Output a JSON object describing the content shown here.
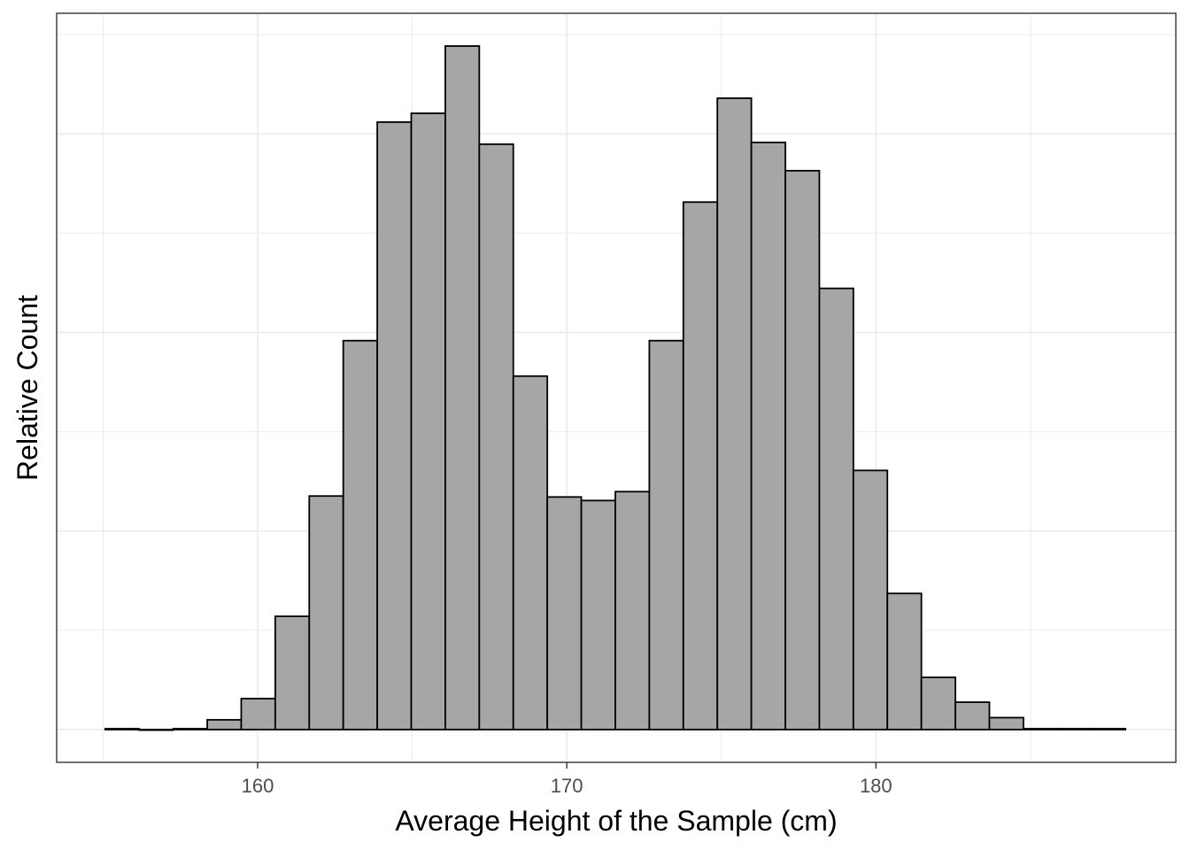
{
  "chart_data": {
    "type": "bar",
    "subtype": "histogram",
    "title": "",
    "xlabel": "Average Height of the Sample (cm)",
    "ylabel": "Relative Count",
    "x_ticks": [
      160,
      170,
      180
    ],
    "y_ticks_labeled": false,
    "xlim": [
      153.5,
      189.7
    ],
    "ylim": [
      -0.0479,
      1.0479
    ],
    "grid": true,
    "legend": "none",
    "bar_fill": "#a6a6a6",
    "bar_stroke": "#000000",
    "bins": [
      {
        "x0": 155.07,
        "x1": 156.17,
        "value": 0.0013
      },
      {
        "x0": 156.17,
        "x1": 157.27,
        "value": 0.0
      },
      {
        "x0": 157.27,
        "x1": 158.37,
        "value": 0.0013
      },
      {
        "x0": 158.37,
        "x1": 159.47,
        "value": 0.0143
      },
      {
        "x0": 159.47,
        "x1": 160.57,
        "value": 0.0453
      },
      {
        "x0": 160.57,
        "x1": 161.67,
        "value": 0.1657
      },
      {
        "x0": 161.67,
        "x1": 162.77,
        "value": 0.3417
      },
      {
        "x0": 162.77,
        "x1": 163.87,
        "value": 0.569
      },
      {
        "x0": 163.87,
        "x1": 164.97,
        "value": 0.8887
      },
      {
        "x0": 164.97,
        "x1": 166.07,
        "value": 0.9016
      },
      {
        "x0": 166.07,
        "x1": 167.17,
        "value": 1.0
      },
      {
        "x0": 167.17,
        "x1": 168.27,
        "value": 0.8564
      },
      {
        "x0": 168.27,
        "x1": 169.37,
        "value": 0.5171
      },
      {
        "x0": 169.37,
        "x1": 170.47,
        "value": 0.3403
      },
      {
        "x0": 170.47,
        "x1": 171.57,
        "value": 0.3351
      },
      {
        "x0": 171.57,
        "x1": 172.67,
        "value": 0.3481
      },
      {
        "x0": 172.67,
        "x1": 173.77,
        "value": 0.569
      },
      {
        "x0": 173.77,
        "x1": 174.87,
        "value": 0.7717
      },
      {
        "x0": 174.87,
        "x1": 175.97,
        "value": 0.9237
      },
      {
        "x0": 175.97,
        "x1": 177.07,
        "value": 0.859
      },
      {
        "x0": 177.07,
        "x1": 178.17,
        "value": 0.8176
      },
      {
        "x0": 178.17,
        "x1": 179.27,
        "value": 0.6455
      },
      {
        "x0": 179.27,
        "x1": 180.37,
        "value": 0.3791
      },
      {
        "x0": 180.37,
        "x1": 181.47,
        "value": 0.1992
      },
      {
        "x0": 181.47,
        "x1": 182.57,
        "value": 0.0764
      },
      {
        "x0": 182.57,
        "x1": 183.67,
        "value": 0.0401
      },
      {
        "x0": 183.67,
        "x1": 184.77,
        "value": 0.0175
      },
      {
        "x0": 184.77,
        "x1": 185.87,
        "value": 0.0013
      },
      {
        "x0": 185.87,
        "x1": 186.97,
        "value": 0.0013
      },
      {
        "x0": 186.97,
        "x1": 188.07,
        "value": 0.0013
      }
    ]
  }
}
